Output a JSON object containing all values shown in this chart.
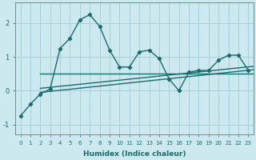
{
  "xlabel": "Humidex (Indice chaleur)",
  "x_values": [
    0,
    1,
    2,
    3,
    4,
    5,
    6,
    7,
    8,
    9,
    10,
    11,
    12,
    13,
    14,
    15,
    16,
    17,
    18,
    19,
    20,
    21,
    22,
    23
  ],
  "y_jagged": [
    -0.75,
    -0.4,
    -0.1,
    0.05,
    1.25,
    1.55,
    2.1,
    2.25,
    1.9,
    1.2,
    0.7,
    0.7,
    1.15,
    1.2,
    0.95,
    0.35,
    0.0,
    0.55,
    0.6,
    0.6,
    0.9,
    1.05,
    1.05,
    0.6
  ],
  "bg_color": "#cce9ef",
  "grid_color": "#aacfd8",
  "line_color": "#1a6b6b",
  "ylim": [
    -1.3,
    2.6
  ],
  "xlim": [
    -0.5,
    23.5
  ],
  "yticks": [
    -1,
    0,
    1,
    2
  ],
  "xticks": [
    0,
    1,
    2,
    3,
    4,
    5,
    6,
    7,
    8,
    9,
    10,
    11,
    12,
    13,
    14,
    15,
    16,
    17,
    18,
    19,
    20,
    21,
    22,
    23
  ],
  "flat_line": {
    "x_start": 2.0,
    "x_end": 23.5,
    "y_start": 0.5,
    "y_end": 0.5
  },
  "diag_line1": {
    "x_start": 2.0,
    "x_end": 23.5,
    "y_start": 0.07,
    "y_end": 0.72
  },
  "diag_line2": {
    "x_start": 2.0,
    "x_end": 23.5,
    "y_start": -0.05,
    "y_end": 0.62
  }
}
